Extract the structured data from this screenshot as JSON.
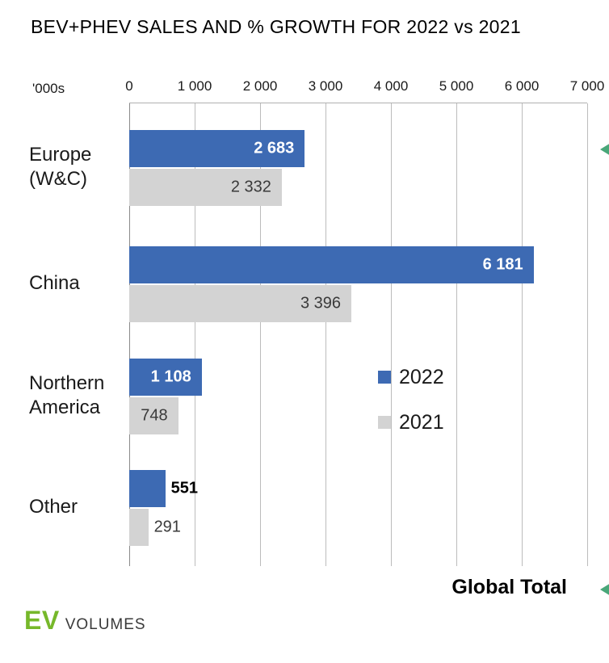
{
  "title": "BEV+PHEV SALES AND % GROWTH FOR 2022 vs 2021",
  "axis": {
    "unit_label": "'000s",
    "tick_labels": [
      "0",
      "1 000",
      "2 000",
      "3 000",
      "4 000",
      "5 000",
      "6 000",
      "7 000"
    ]
  },
  "chart_data": {
    "type": "bar",
    "orientation": "horizontal",
    "title": "BEV+PHEV SALES AND % GROWTH FOR 2022 vs 2021",
    "unit": "thousands",
    "xlim": [
      0,
      7000
    ],
    "x_ticks": [
      0,
      1000,
      2000,
      3000,
      4000,
      5000,
      6000,
      7000
    ],
    "grid": true,
    "legend_position": "center-right",
    "categories": [
      "Europe (W&C)",
      "China",
      "Northern America",
      "Other"
    ],
    "category_lines": [
      [
        "Europe",
        "(W&C)"
      ],
      [
        "China"
      ],
      [
        "Northern",
        "America"
      ],
      [
        "Other"
      ]
    ],
    "series": [
      {
        "name": "2022",
        "color": "#3d6ab3",
        "values": [
          2683,
          6181,
          1108,
          551
        ],
        "labels": [
          {
            "text": "2 683",
            "position": "inside",
            "tone": "light"
          },
          {
            "text": "6 181",
            "position": "inside",
            "tone": "light"
          },
          {
            "text": "1 108",
            "position": "inside",
            "tone": "light"
          },
          {
            "text": "551",
            "position": "outside",
            "tone": "dark-bold"
          }
        ]
      },
      {
        "name": "2021",
        "color": "#d3d3d3",
        "values": [
          2332,
          3396,
          748,
          291
        ],
        "labels": [
          {
            "text": "2 332",
            "position": "inside",
            "tone": "dark"
          },
          {
            "text": "3 396",
            "position": "inside",
            "tone": "dark"
          },
          {
            "text": "748",
            "position": "inside",
            "tone": "dark"
          },
          {
            "text": "291",
            "position": "outside",
            "tone": "dark"
          }
        ]
      }
    ]
  },
  "legend": {
    "items": [
      {
        "label": "2022",
        "color": "#3d6ab3"
      },
      {
        "label": "2021",
        "color": "#d3d3d3"
      }
    ]
  },
  "footer": {
    "global_total_label": "Global Total",
    "logo": {
      "ev": "EV",
      "volumes": "VOLUMES"
    }
  },
  "colors": {
    "bar_2022": "#3d6ab3",
    "bar_2021": "#d3d3d3",
    "gridline": "#bcbcbc",
    "axis_line": "#8a8a8a",
    "logo_green": "#76b82a",
    "arrow_accent": "#49a779"
  }
}
